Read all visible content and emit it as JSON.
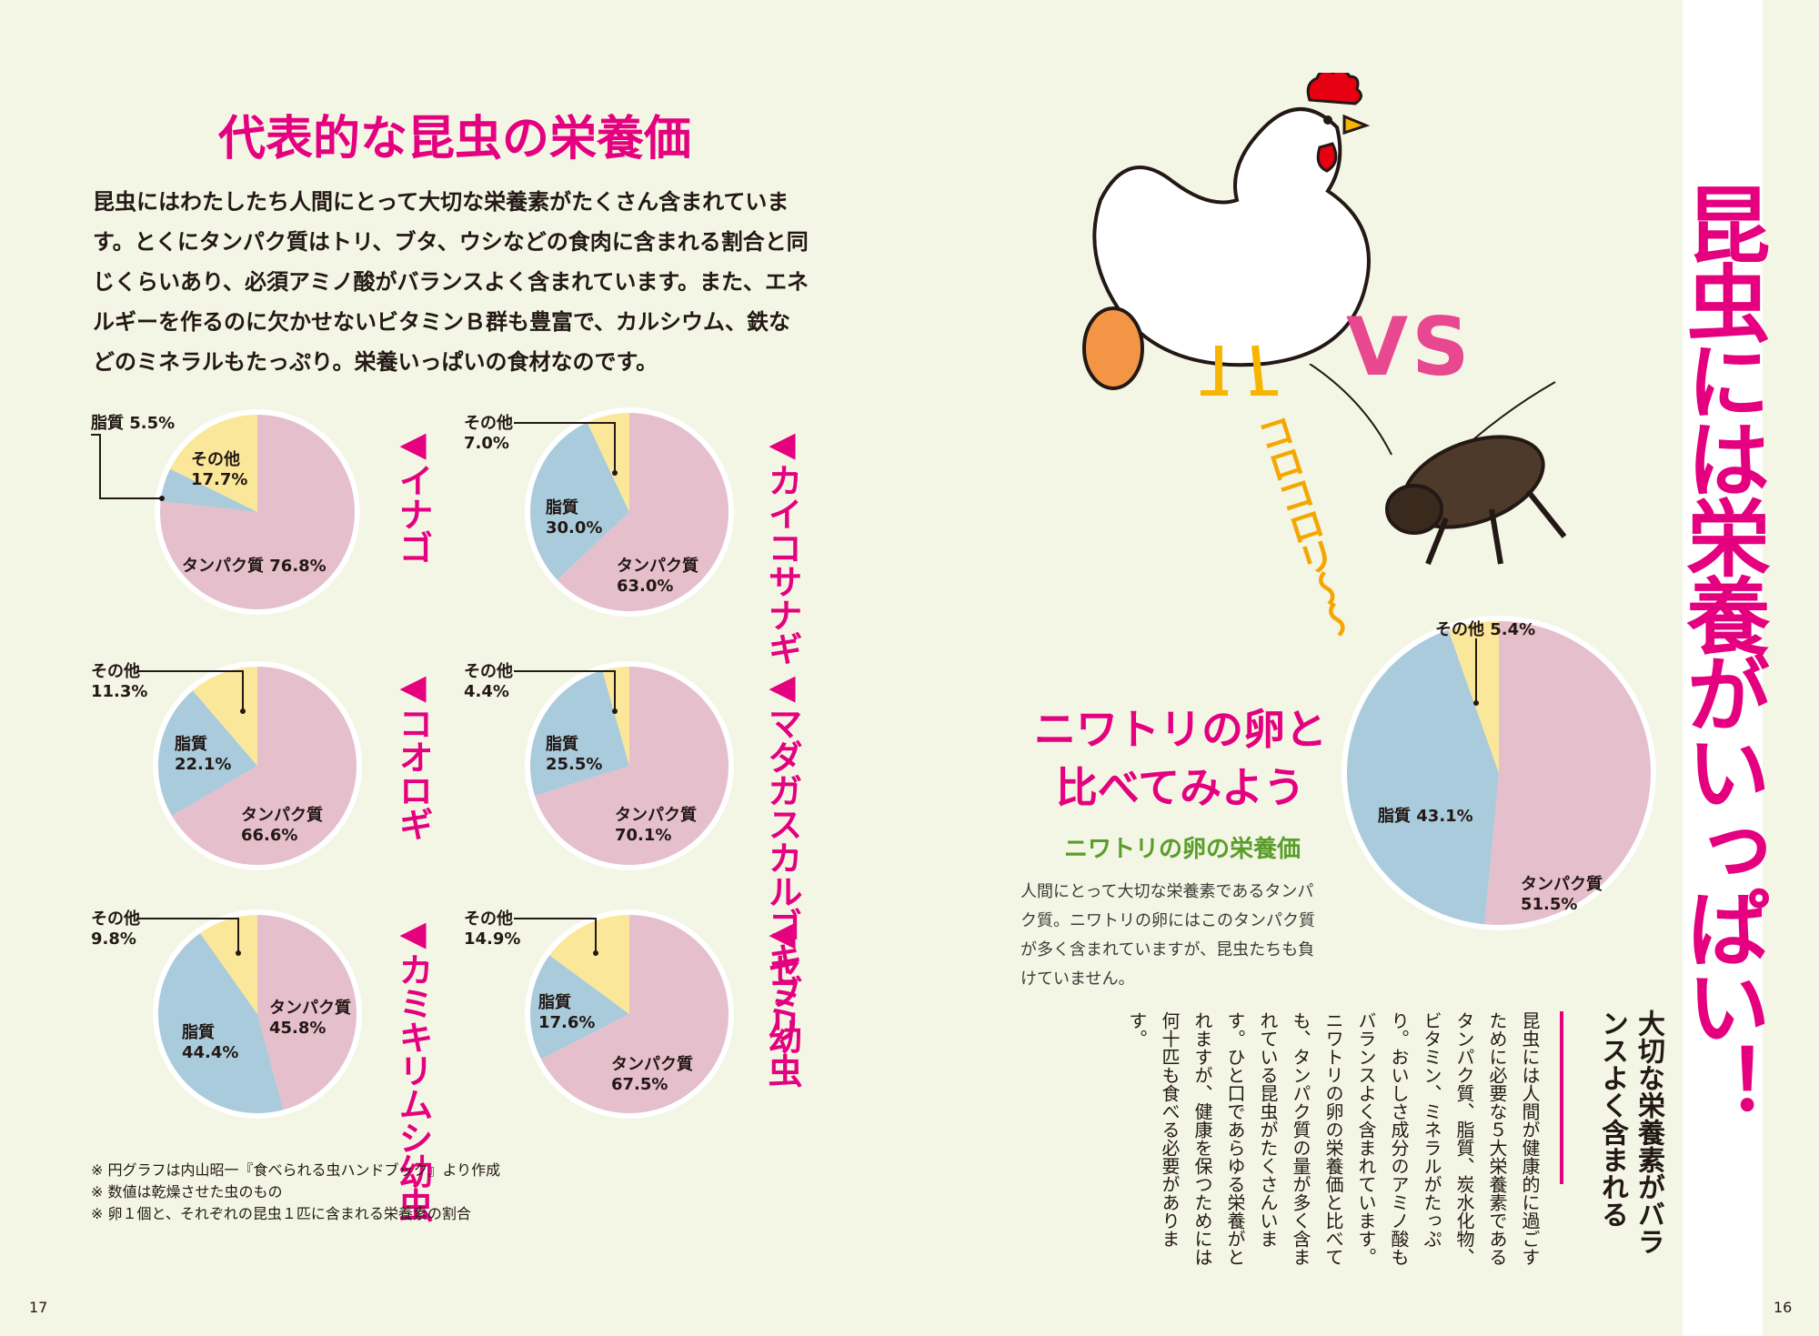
{
  "page": {
    "left_title": "代表的な昆虫の栄養価",
    "intro": "昆虫にはわたしたち人間にとって大切な栄養素がたくさん含まれています。とくにタンパク質はトリ、ブタ、ウシなどの食肉に含まれる割合と同じくらいあり、必須アミノ酸がバランスよく含まれています。また、エネルギーを作るのに欠かせないビタミンＢ群も豊富で、カルシウム、鉄などのミネラルもたっぷり。栄養いっぱいの食材なのです。",
    "main_title": "昆虫には栄養がいっぱい！",
    "vs_text": "VS",
    "koro_text": "コロコロリ〜〜",
    "egg_title_line1": "ニワトリの卵と",
    "egg_title_line2": "比べてみよう",
    "egg_subtitle": "ニワトリの卵の栄養価",
    "egg_description": "人間にとって大切な栄養素であるタンパク質。ニワトリの卵にはこのタンパク質が多く含まれていますが、昆虫たちも負けていません。",
    "vertical_heading": "大切な栄養素がバランスよく含まれる",
    "vertical_body": "昆虫には人間が健康的に過ごすために必要な５大栄養素であるタンパク質、脂質、炭水化物、ビタミン、ミネラルがたっぷり。おいしさ成分のアミノ酸もバランスよく含まれています。ニワトリの卵の栄養価と比べても、タンパク質の量が多く含まれている昆虫がたくさんいます。ひと口であらゆる栄養がとれますが、健康を保つためには何十匹も食べる必要があります。",
    "notes": [
      "※ 円グラフは内山昭一『食べられる虫ハンドブック』より作成",
      "※ 数値は乾燥させた虫のもの",
      "※ 卵１個と、それぞれの昆虫１匹に含まれる栄養素の割合"
    ],
    "page_left": "17",
    "page_right": "16"
  },
  "chart_data": [
    {
      "type": "pie",
      "title": "◀イナゴ",
      "categories": [
        "タンパク質",
        "脂質",
        "その他"
      ],
      "values": [
        76.8,
        5.5,
        17.7
      ]
    },
    {
      "type": "pie",
      "title": "◀カイコサナギ",
      "categories": [
        "タンパク質",
        "脂質",
        "その他"
      ],
      "values": [
        63.0,
        30.0,
        7.0
      ]
    },
    {
      "type": "pie",
      "title": "◀コオロギ",
      "categories": [
        "タンパク質",
        "脂質",
        "その他"
      ],
      "values": [
        66.6,
        22.1,
        11.3
      ]
    },
    {
      "type": "pie",
      "title": "◀マダガスカルゴキブリ",
      "categories": [
        "タンパク質",
        "脂質",
        "その他"
      ],
      "values": [
        70.1,
        25.5,
        4.4
      ]
    },
    {
      "type": "pie",
      "title": "◀カミキリムシ幼虫",
      "categories": [
        "タンパク質",
        "脂質",
        "その他"
      ],
      "values": [
        45.8,
        44.4,
        9.8
      ]
    },
    {
      "type": "pie",
      "title": "◀セミ幼虫",
      "categories": [
        "タンパク質",
        "脂質",
        "その他"
      ],
      "values": [
        67.5,
        17.6,
        14.9
      ]
    },
    {
      "type": "pie",
      "title": "ニワトリの卵の栄養価",
      "categories": [
        "タンパク質",
        "脂質",
        "その他"
      ],
      "values": [
        51.5,
        43.1,
        5.4
      ]
    }
  ],
  "pie_labels": [
    {
      "protein": "タンパク質 76.8%",
      "fat": "脂質 5.5%",
      "other": "その他\n17.7%"
    },
    {
      "protein": "タンパク質\n63.0%",
      "fat": "脂質\n30.0%",
      "other": "その他\n7.0%"
    },
    {
      "protein": "タンパク質\n66.6%",
      "fat": "脂質\n22.1%",
      "other": "その他\n11.3%"
    },
    {
      "protein": "タンパク質\n70.1%",
      "fat": "脂質\n25.5%",
      "other": "その他\n4.4%"
    },
    {
      "protein": "タンパク質\n45.8%",
      "fat": "脂質\n44.4%",
      "other": "その他\n9.8%"
    },
    {
      "protein": "タンパク質\n67.5%",
      "fat": "脂質\n17.6%",
      "other": "その他\n14.9%"
    },
    {
      "protein": "タンパク質\n51.5%",
      "fat": "脂質 43.1%",
      "other": "その他 5.4%"
    }
  ],
  "colors": {
    "protein": "#e5bfcc",
    "fat": "#a9cbdc",
    "other": "#fbe79a",
    "accent": "#e4007f",
    "green": "#5a9d2a"
  },
  "icons": [
    "chicken-illustration",
    "egg-illustration",
    "cricket-illustration"
  ]
}
